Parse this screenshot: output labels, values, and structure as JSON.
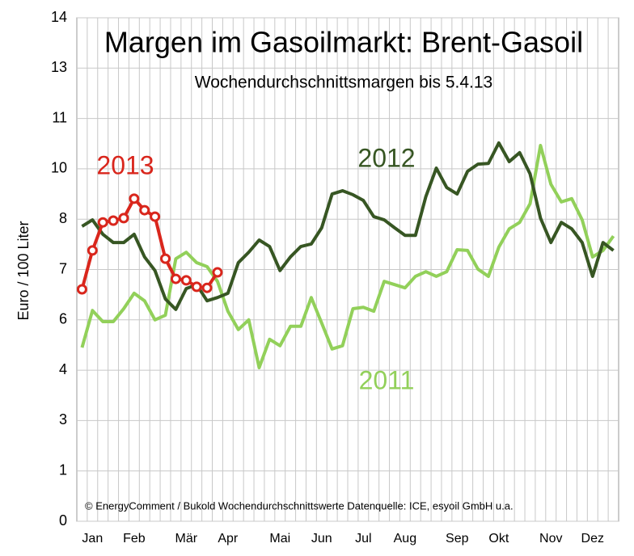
{
  "chart_data": {
    "type": "line",
    "title": "Margen im Gasoilmarkt: Brent-Gasoil",
    "subtitle": "Wochendurchschnittsmargen bis 5.4.13",
    "y_label": "Euro / 100 Liter",
    "source": "© EnergyComment / Bukold Wochendurchschnittswerte Datenquelle: ICE, esyoil GmbH u.a.",
    "categories": [
      null,
      "Jan",
      null,
      null,
      null,
      "Feb",
      null,
      null,
      null,
      null,
      "Mär",
      null,
      null,
      null,
      "Apr",
      null,
      null,
      null,
      null,
      "Mai",
      null,
      null,
      null,
      "Jun",
      null,
      null,
      null,
      "Jul",
      null,
      null,
      null,
      "Aug",
      null,
      null,
      null,
      null,
      "Sep",
      null,
      null,
      null,
      "Okt",
      null,
      null,
      null,
      null,
      "Nov",
      null,
      null,
      null,
      "Dez",
      null,
      null
    ],
    "ylim": [
      0,
      14
    ],
    "yticks": [
      0,
      {
        "value": 1.4,
        "label": "1"
      },
      {
        "value": 2.8,
        "label": "3"
      },
      {
        "value": 4.2,
        "label": "4"
      },
      {
        "value": 5.6,
        "label": "6"
      },
      7,
      {
        "value": 8.4,
        "label": "8"
      },
      {
        "value": 9.8,
        "label": "10"
      },
      {
        "value": 11.2,
        "label": "11"
      },
      {
        "value": 12.6,
        "label": "13"
      },
      14
    ],
    "grid": true,
    "series": [
      {
        "name": "2011",
        "color": "#92d05a",
        "values": [
          4.83,
          5.86,
          5.55,
          5.55,
          5.91,
          6.34,
          6.13,
          5.6,
          5.73,
          7.3,
          7.48,
          7.19,
          7.08,
          6.67,
          5.84,
          5.33,
          5.6,
          4.27,
          5.06,
          4.88,
          5.42,
          5.42,
          6.22,
          5.51,
          4.79,
          4.88,
          5.91,
          5.95,
          5.84,
          6.67,
          6.58,
          6.49,
          6.81,
          6.94,
          6.81,
          6.94,
          7.55,
          7.53,
          7.01,
          6.81,
          7.62,
          8.13,
          8.31,
          8.83,
          10.45,
          9.37,
          8.88,
          8.97,
          8.38,
          7.35,
          7.53,
          7.93
        ]
      },
      {
        "name": "2012",
        "color": "#375623",
        "values": [
          8.2,
          8.38,
          7.98,
          7.75,
          7.75,
          7.98,
          7.35,
          6.97,
          6.18,
          5.89,
          6.47,
          6.58,
          6.13,
          6.22,
          6.34,
          7.19,
          7.48,
          7.82,
          7.64,
          6.97,
          7.35,
          7.64,
          7.71,
          8.16,
          9.1,
          9.19,
          9.08,
          8.92,
          8.47,
          8.38,
          8.16,
          7.95,
          7.95,
          9.03,
          9.82,
          9.28,
          9.1,
          9.73,
          9.93,
          9.95,
          10.52,
          10.0,
          10.25,
          9.66,
          8.43,
          7.75,
          8.31,
          8.13,
          7.75,
          6.81,
          7.75,
          7.53
        ]
      },
      {
        "name": "2013",
        "color": "#d9261c",
        "values": [
          6.45,
          7.53,
          8.31,
          8.36,
          8.43,
          8.97,
          8.65,
          8.47,
          7.3,
          6.74,
          6.7,
          6.52,
          6.49,
          6.92,
          null,
          null,
          null,
          null,
          null,
          null,
          null,
          null,
          null,
          null,
          null,
          null,
          null,
          null,
          null,
          null,
          null,
          null,
          null,
          null,
          null,
          null,
          null,
          null,
          null,
          null,
          null,
          null,
          null,
          null,
          null,
          null,
          null,
          null,
          null,
          null,
          null,
          null
        ]
      }
    ]
  }
}
